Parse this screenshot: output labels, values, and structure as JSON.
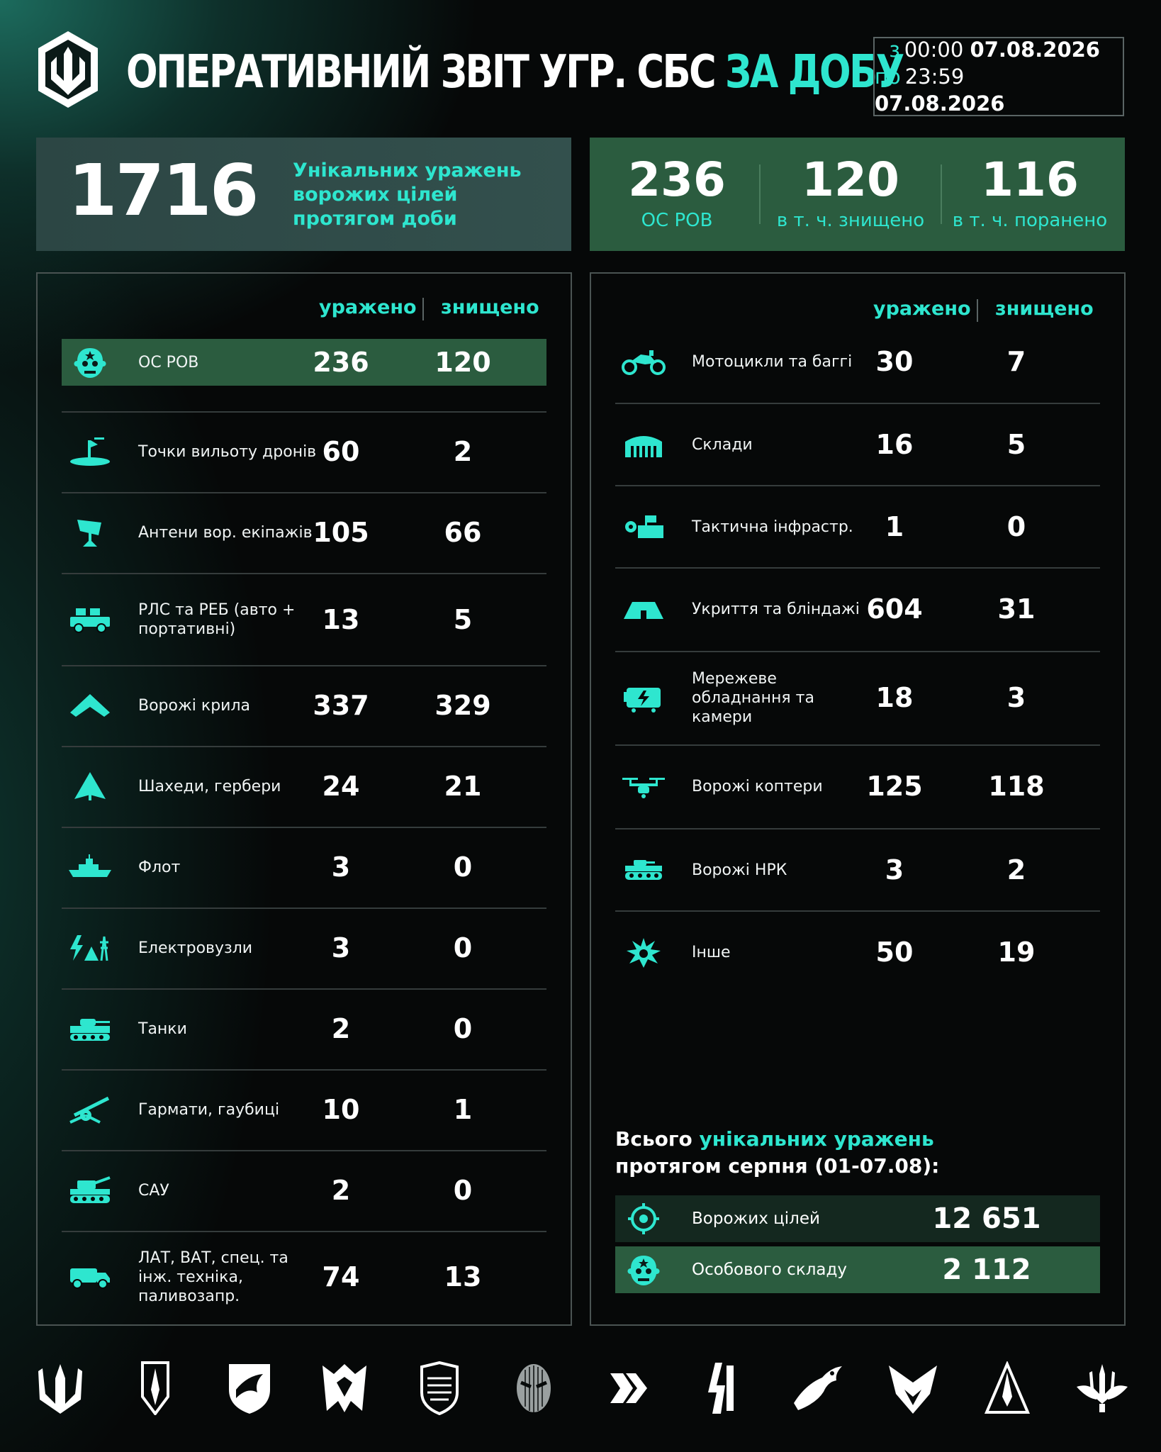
{
  "header": {
    "title_main": "ОПЕРАТИВНИЙ ЗВІТ УГР. СБС",
    "title_accent": "ЗА ДОБУ",
    "date_from_prefix": "з",
    "date_from_time": "00:00",
    "date_from_date": "07.08.2026",
    "date_to_prefix": "по",
    "date_to_time": "23:59",
    "date_to_date": "07.08.2026"
  },
  "total": {
    "value": "1716",
    "description": "Унікальних уражень ворожих цілей протягом доби"
  },
  "personnel": [
    {
      "value": "236",
      "label": "ОС РОВ"
    },
    {
      "value": "120",
      "label": "в т. ч. знищено"
    },
    {
      "value": "116",
      "label": "в т. ч. поранено"
    }
  ],
  "left_panel": {
    "col1": "уражено",
    "col2": "знищено",
    "rows": [
      {
        "icon": "soldier-icon",
        "label": "ОС РОВ",
        "hit": "236",
        "destroyed": "120"
      },
      {
        "icon": "drone-launch-point-icon",
        "label": "Точки вильоту дронів",
        "hit": "60",
        "destroyed": "2"
      },
      {
        "icon": "antenna-icon",
        "label": "Антени вор. екіпажів",
        "hit": "105",
        "destroyed": "66"
      },
      {
        "icon": "radar-truck-icon",
        "label": "РЛС та РЕБ (авто + портативні)",
        "hit": "13",
        "destroyed": "5"
      },
      {
        "icon": "wing-icon",
        "label": "Ворожі крила",
        "hit": "337",
        "destroyed": "329"
      },
      {
        "icon": "shahed-icon",
        "label": "Шахеди, гербери",
        "hit": "24",
        "destroyed": "21"
      },
      {
        "icon": "ship-icon",
        "label": "Флот",
        "hit": "3",
        "destroyed": "0"
      },
      {
        "icon": "power-node-icon",
        "label": "Електровузли",
        "hit": "3",
        "destroyed": "0"
      },
      {
        "icon": "tank-icon",
        "label": "Танки",
        "hit": "2",
        "destroyed": "0"
      },
      {
        "icon": "artillery-icon",
        "label": "Гармати, гаубиці",
        "hit": "10",
        "destroyed": "1"
      },
      {
        "icon": "spg-icon",
        "label": "САУ",
        "hit": "2",
        "destroyed": "0"
      },
      {
        "icon": "truck-icon",
        "label": "ЛАТ, ВАТ, спец. та інж. техніка, паливозапр.",
        "hit": "74",
        "destroyed": "13"
      }
    ]
  },
  "right_panel": {
    "col1": "уражено",
    "col2": "знищено",
    "rows": [
      {
        "icon": "motorcycle-icon",
        "label": "Мотоцикли та баггі",
        "hit": "30",
        "destroyed": "7"
      },
      {
        "icon": "warehouse-icon",
        "label": "Склади",
        "hit": "16",
        "destroyed": "5"
      },
      {
        "icon": "infrastructure-icon",
        "label": "Тактична інфрастр.",
        "hit": "1",
        "destroyed": "0"
      },
      {
        "icon": "bunker-icon",
        "label": "Укриття та бліндажі",
        "hit": "604",
        "destroyed": "31"
      },
      {
        "icon": "network-equipment-icon",
        "label": "Мережеве обладнання та камери",
        "hit": "18",
        "destroyed": "3"
      },
      {
        "icon": "copter-icon",
        "label": "Ворожі коптери",
        "hit": "125",
        "destroyed": "118"
      },
      {
        "icon": "ground-robot-icon",
        "label": "Ворожі НРК",
        "hit": "3",
        "destroyed": "2"
      },
      {
        "icon": "explosion-icon",
        "label": "Інше",
        "hit": "50",
        "destroyed": "19"
      }
    ]
  },
  "summary": {
    "title_pre": "Всього",
    "title_accent": "унікальних уражень",
    "title_post": "протягом серпня (01-07.08):",
    "rows": [
      {
        "icon": "target-icon",
        "label": "Ворожих цілей",
        "value": "12 651"
      },
      {
        "icon": "soldier-icon",
        "label": "Особового складу",
        "value": "2 112"
      }
    ]
  },
  "emblems": [
    "trident-emblem-icon",
    "dagger-emblem-icon",
    "bird-shield-emblem-icon",
    "wolf-emblem-icon",
    "shield-emblem-icon",
    "mask-emblem-icon",
    "chevron-emblem-icon",
    "lightning-emblem-icon",
    "eagle-emblem-icon",
    "hawk-emblem-icon",
    "arrow-emblem-icon",
    "winged-trident-emblem-icon"
  ],
  "colors": {
    "accent": "#2ee6cf",
    "green": "#2b5c3f",
    "background": "#060808"
  }
}
